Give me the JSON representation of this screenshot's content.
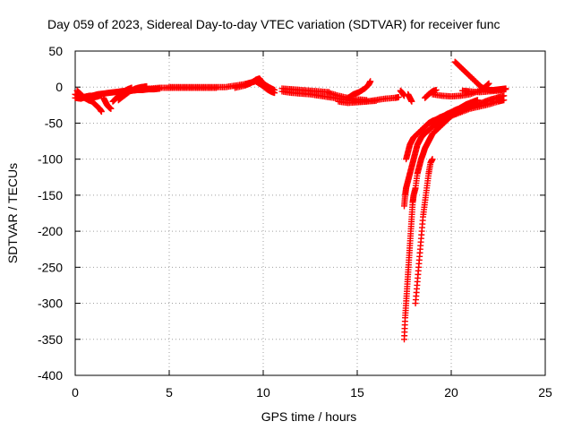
{
  "chart_data": {
    "type": "scatter",
    "title": "Day 059 of 2023, Sidereal Day-to-day VTEC variation (SDTVAR) for receiver func",
    "xlabel": "GPS time / hours",
    "ylabel": "SDTVAR / TECUs",
    "xlim": [
      0,
      25
    ],
    "ylim": [
      -400,
      50
    ],
    "x_ticks": [
      0,
      5,
      10,
      15,
      20,
      25
    ],
    "y_ticks": [
      50,
      0,
      -50,
      -100,
      -150,
      -200,
      -250,
      -300,
      -350,
      -400
    ],
    "grid": true,
    "marker": "plus",
    "series_color": "#ff0000",
    "series": [
      {
        "segments": [
          [
            [
              0.0,
              -10
            ],
            [
              0.2,
              -12
            ],
            [
              0.4,
              -14
            ],
            [
              0.6,
              -13
            ],
            [
              0.8,
              -12
            ],
            [
              1.0,
              -14
            ],
            [
              1.2,
              -13
            ],
            [
              1.4,
              -11
            ]
          ],
          [
            [
              0.1,
              -5
            ],
            [
              0.3,
              -10
            ],
            [
              0.5,
              -15
            ],
            [
              0.7,
              -18
            ],
            [
              0.9,
              -20
            ],
            [
              1.1,
              -25
            ],
            [
              1.3,
              -30
            ],
            [
              1.4,
              -34
            ]
          ],
          [
            [
              0.0,
              -15
            ],
            [
              0.3,
              -16
            ],
            [
              0.6,
              -14
            ],
            [
              0.9,
              -12
            ],
            [
              1.2,
              -10
            ],
            [
              1.5,
              -9
            ],
            [
              1.8,
              -8
            ],
            [
              2.1,
              -7
            ],
            [
              2.4,
              -6
            ],
            [
              2.7,
              -5
            ],
            [
              3.0,
              -5
            ],
            [
              3.3,
              -4
            ],
            [
              3.6,
              -4
            ],
            [
              3.9,
              -3
            ],
            [
              4.2,
              -3
            ],
            [
              4.5,
              -2
            ]
          ],
          [
            [
              1.5,
              -15
            ],
            [
              1.6,
              -20
            ],
            [
              1.7,
              -25
            ],
            [
              1.8,
              -28
            ],
            [
              1.9,
              -30
            ]
          ],
          [
            [
              2.0,
              -20
            ],
            [
              2.2,
              -15
            ],
            [
              2.4,
              -10
            ],
            [
              2.6,
              -6
            ],
            [
              2.8,
              -3
            ],
            [
              3.0,
              -1
            ]
          ],
          [
            [
              2.3,
              -18
            ],
            [
              2.6,
              -12
            ],
            [
              2.9,
              -6
            ],
            [
              3.2,
              -2
            ],
            [
              3.5,
              0
            ],
            [
              3.8,
              1
            ]
          ],
          [
            [
              3.0,
              -5
            ],
            [
              3.5,
              -3
            ],
            [
              4.0,
              -2
            ],
            [
              4.5,
              -1
            ],
            [
              5.0,
              -1
            ],
            [
              5.5,
              -1
            ],
            [
              6.0,
              -1
            ],
            [
              6.5,
              -1
            ],
            [
              7.0,
              -1
            ],
            [
              7.5,
              -1
            ]
          ],
          [
            [
              5.0,
              0
            ],
            [
              5.5,
              0
            ],
            [
              6.0,
              0
            ],
            [
              6.5,
              0
            ],
            [
              7.0,
              0
            ],
            [
              7.5,
              0
            ],
            [
              8.0,
              0
            ],
            [
              8.5,
              2
            ],
            [
              9.0,
              4
            ],
            [
              9.3,
              6
            ],
            [
              9.6,
              8
            ],
            [
              9.9,
              3
            ],
            [
              10.2,
              -3
            ],
            [
              10.4,
              -6
            ],
            [
              10.6,
              -8
            ]
          ],
          [
            [
              8.5,
              -1
            ],
            [
              9.0,
              2
            ],
            [
              9.3,
              5
            ],
            [
              9.6,
              10
            ],
            [
              9.8,
              12
            ],
            [
              10.0,
              5
            ],
            [
              10.3,
              0
            ],
            [
              10.6,
              -4
            ]
          ],
          [
            [
              11.0,
              -2
            ],
            [
              11.5,
              -3
            ],
            [
              12.0,
              -4
            ],
            [
              12.5,
              -5
            ],
            [
              13.0,
              -6
            ],
            [
              13.5,
              -7
            ]
          ],
          [
            [
              11.0,
              -6
            ],
            [
              11.5,
              -8
            ],
            [
              12.0,
              -9
            ],
            [
              12.5,
              -10
            ],
            [
              13.0,
              -12
            ],
            [
              13.5,
              -14
            ],
            [
              14.0,
              -16
            ],
            [
              14.5,
              -18
            ],
            [
              15.0,
              -20
            ],
            [
              15.5,
              -20
            ],
            [
              16.0,
              -18
            ],
            [
              16.5,
              -16
            ],
            [
              17.0,
              -15
            ],
            [
              17.2,
              -14
            ]
          ],
          [
            [
              13.5,
              -8
            ],
            [
              14.0,
              -12
            ],
            [
              14.5,
              -15
            ],
            [
              15.0,
              -17
            ],
            [
              15.5,
              -18
            ]
          ],
          [
            [
              14.5,
              -15
            ],
            [
              14.8,
              -10
            ],
            [
              15.1,
              -7
            ],
            [
              15.4,
              -2
            ],
            [
              15.6,
              3
            ],
            [
              15.7,
              8
            ]
          ],
          [
            [
              14.0,
              -20
            ],
            [
              14.5,
              -22
            ],
            [
              15.0,
              -21
            ],
            [
              15.5,
              -20
            ],
            [
              16.0,
              -19
            ]
          ],
          [
            [
              17.3,
              -5
            ],
            [
              17.4,
              -8
            ],
            [
              17.5,
              -12
            ]
          ],
          [
            [
              17.7,
              -10
            ],
            [
              17.8,
              -15
            ],
            [
              17.9,
              -20
            ]
          ],
          [
            [
              17.5,
              -350
            ],
            [
              17.55,
              -320
            ],
            [
              17.6,
              -300
            ],
            [
              17.65,
              -280
            ],
            [
              17.7,
              -260
            ],
            [
              17.75,
              -240
            ],
            [
              17.8,
              -220
            ],
            [
              17.85,
              -200
            ],
            [
              17.9,
              -180
            ],
            [
              17.95,
              -160
            ],
            [
              18.0,
              -150
            ],
            [
              18.1,
              -140
            ],
            [
              18.2,
              -120
            ],
            [
              18.3,
              -110
            ],
            [
              18.4,
              -100
            ],
            [
              18.5,
              -93
            ],
            [
              18.6,
              -85
            ],
            [
              18.7,
              -80
            ],
            [
              18.8,
              -75
            ],
            [
              18.9,
              -70
            ],
            [
              19.0,
              -65
            ],
            [
              19.2,
              -60
            ],
            [
              19.4,
              -55
            ],
            [
              19.6,
              -50
            ],
            [
              19.8,
              -45
            ],
            [
              20.0,
              -40
            ],
            [
              20.5,
              -35
            ],
            [
              21.0,
              -30
            ],
            [
              21.5,
              -27
            ],
            [
              22.0,
              -24
            ],
            [
              22.5,
              -20
            ],
            [
              22.8,
              -18
            ]
          ],
          [
            [
              17.5,
              -165
            ],
            [
              17.55,
              -150
            ],
            [
              17.6,
              -140
            ],
            [
              17.7,
              -130
            ],
            [
              17.8,
              -120
            ],
            [
              17.9,
              -110
            ],
            [
              18.0,
              -100
            ],
            [
              18.1,
              -90
            ],
            [
              18.2,
              -80
            ],
            [
              18.3,
              -75
            ],
            [
              18.4,
              -70
            ],
            [
              18.5,
              -67
            ],
            [
              18.6,
              -64
            ],
            [
              18.8,
              -60
            ],
            [
              19.0,
              -55
            ],
            [
              19.3,
              -50
            ],
            [
              19.6,
              -45
            ],
            [
              20.0,
              -40
            ],
            [
              20.4,
              -35
            ],
            [
              20.8,
              -30
            ],
            [
              21.2,
              -26
            ],
            [
              21.6,
              -22
            ],
            [
              22.0,
              -18
            ],
            [
              22.4,
              -15
            ],
            [
              22.8,
              -12
            ]
          ],
          [
            [
              17.6,
              -100
            ],
            [
              17.7,
              -90
            ],
            [
              17.8,
              -80
            ],
            [
              17.9,
              -75
            ],
            [
              18.0,
              -70
            ],
            [
              18.2,
              -65
            ],
            [
              18.4,
              -60
            ],
            [
              18.6,
              -55
            ],
            [
              18.8,
              -50
            ],
            [
              19.0,
              -47
            ],
            [
              19.2,
              -45
            ],
            [
              19.4,
              -42
            ],
            [
              19.6,
              -40
            ],
            [
              19.8,
              -37
            ],
            [
              20.0,
              -35
            ],
            [
              20.2,
              -32
            ],
            [
              20.4,
              -30
            ],
            [
              20.6,
              -27
            ],
            [
              20.8,
              -24
            ],
            [
              21.0,
              -22
            ],
            [
              21.2,
              -20
            ],
            [
              21.4,
              -18
            ]
          ],
          [
            [
              18.1,
              -300
            ],
            [
              18.2,
              -270
            ],
            [
              18.3,
              -240
            ],
            [
              18.4,
              -210
            ],
            [
              18.5,
              -180
            ],
            [
              18.6,
              -160
            ],
            [
              18.7,
              -140
            ],
            [
              18.8,
              -120
            ],
            [
              18.9,
              -105
            ],
            [
              19.0,
              -100
            ]
          ],
          [
            [
              18.6,
              -15
            ],
            [
              18.8,
              -10
            ],
            [
              19.0,
              -6
            ],
            [
              19.2,
              -4
            ]
          ],
          [
            [
              19.0,
              -10
            ],
            [
              19.5,
              -12
            ],
            [
              20.0,
              -13
            ],
            [
              20.5,
              -12
            ],
            [
              21.0,
              -10
            ],
            [
              21.5,
              -5
            ],
            [
              21.8,
              0
            ],
            [
              22.0,
              5
            ]
          ],
          [
            [
              20.2,
              35
            ],
            [
              20.4,
              30
            ],
            [
              20.6,
              25
            ],
            [
              20.8,
              20
            ],
            [
              21.0,
              15
            ],
            [
              21.2,
              10
            ],
            [
              21.4,
              5
            ],
            [
              21.6,
              0
            ],
            [
              21.8,
              -3
            ],
            [
              22.0,
              -4
            ],
            [
              22.3,
              -4
            ],
            [
              22.6,
              -3
            ],
            [
              22.9,
              -2
            ]
          ],
          [
            [
              20.6,
              -5
            ],
            [
              21.0,
              -6
            ],
            [
              21.5,
              -7
            ],
            [
              22.0,
              -6
            ],
            [
              22.5,
              -5
            ],
            [
              22.9,
              -3
            ]
          ]
        ]
      }
    ]
  }
}
